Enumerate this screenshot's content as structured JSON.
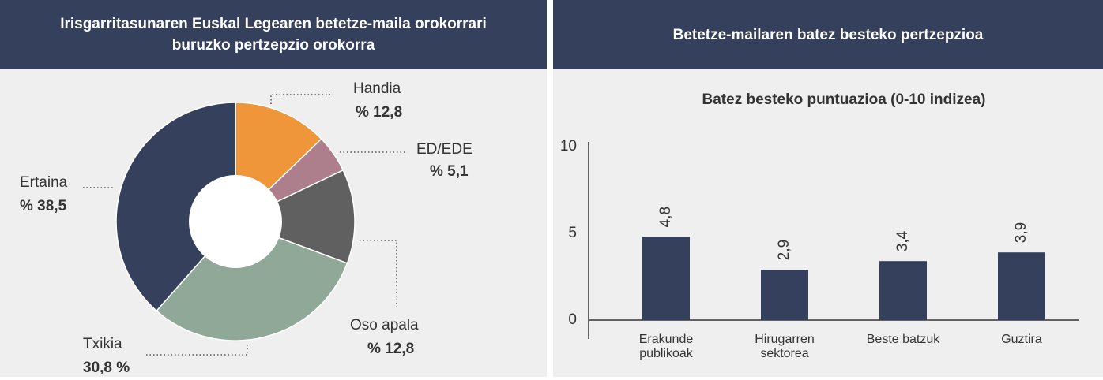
{
  "chart_data": [
    {
      "type": "pie",
      "title": "Irisgarritasunaren Euskal Legearen betetze-maila orokorrari buruzko pertzepzio orokorra",
      "categories": [
        "Handia",
        "ED/EDE",
        "Oso apala",
        "Txikia",
        "Ertaina"
      ],
      "values": [
        12.8,
        5.1,
        12.8,
        30.8,
        38.5
      ],
      "value_labels": [
        "% 12,8",
        "% 5,1",
        "% 12,8",
        "30,8 %",
        "% 38,5"
      ],
      "colors": [
        "#f0963a",
        "#ad7f8d",
        "#606060",
        "#8fa897",
        "#35405d"
      ]
    },
    {
      "type": "bar",
      "title": "Betetze-mailaren batez besteko pertzepzioa",
      "subtitle": "Batez besteko puntuazioa (0-10 indizea)",
      "categories": [
        "Erakunde publikoak",
        "Hirugarren sektorea",
        "Beste batzuk",
        "Guztira"
      ],
      "values": [
        4.8,
        2.9,
        3.4,
        3.9
      ],
      "value_labels": [
        "4,8",
        "2,9",
        "3,4",
        "3,9"
      ],
      "color": "#35405d",
      "ylim": [
        0,
        10
      ],
      "yticks": [
        0,
        5,
        10
      ]
    }
  ]
}
